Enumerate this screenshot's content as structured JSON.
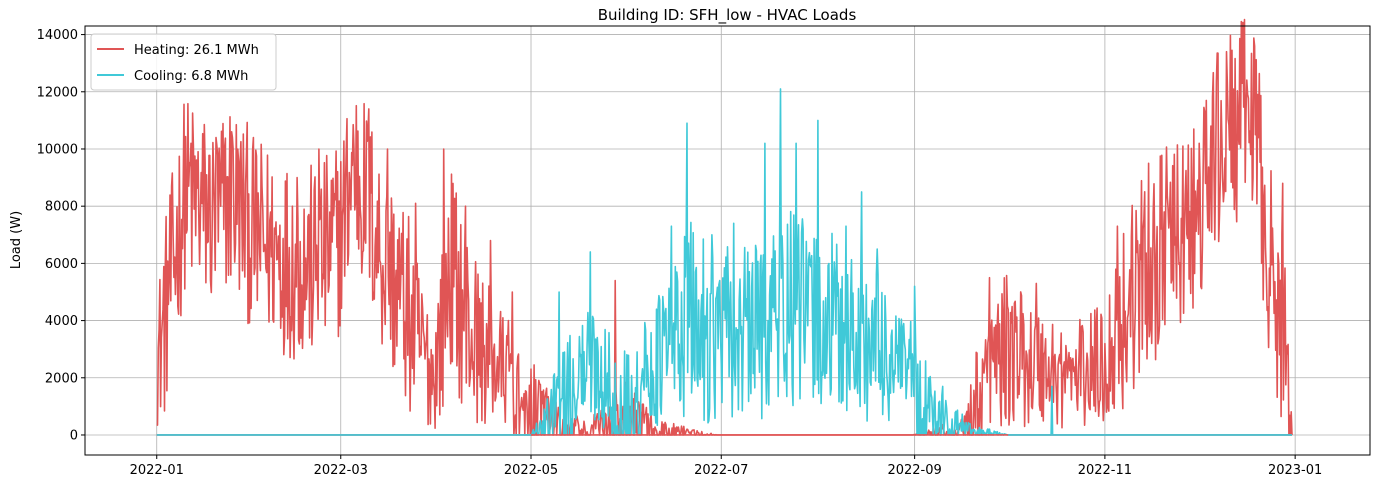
{
  "chart_data": {
    "type": "line",
    "title": "Building ID: SFH_low - HVAC Loads",
    "xlabel": "",
    "ylabel": "Load (W)",
    "xlim": [
      "2021-12-09",
      "2023-01-25"
    ],
    "ylim": [
      -700,
      14300
    ],
    "x_ticks": [
      "2022-01",
      "2022-03",
      "2022-05",
      "2022-07",
      "2022-09",
      "2022-11",
      "2023-01"
    ],
    "x_tick_dates": [
      "2022-01-01",
      "2022-03-01",
      "2022-05-01",
      "2022-07-01",
      "2022-09-01",
      "2022-11-01",
      "2023-01-01"
    ],
    "y_ticks": [
      0,
      2000,
      4000,
      6000,
      8000,
      10000,
      12000,
      14000
    ],
    "y_tick_labels": [
      "0",
      "2000",
      "4000",
      "6000",
      "8000",
      "10000",
      "12000",
      "14000"
    ],
    "grid": true,
    "legend_position": "top-left",
    "series": [
      {
        "name": "Heating: 26.1 MWh",
        "color": "#d62728",
        "dates": [
          "2022-01-01",
          "2022-01-05",
          "2022-01-10",
          "2022-01-15",
          "2022-01-20",
          "2022-01-25",
          "2022-02-01",
          "2022-02-08",
          "2022-02-15",
          "2022-02-22",
          "2022-03-01",
          "2022-03-05",
          "2022-03-10",
          "2022-03-15",
          "2022-03-20",
          "2022-03-25",
          "2022-03-31",
          "2022-04-05",
          "2022-04-10",
          "2022-04-15",
          "2022-04-20",
          "2022-04-25",
          "2022-05-01",
          "2022-05-10",
          "2022-05-20",
          "2022-05-31",
          "2022-06-10",
          "2022-06-30",
          "2022-07-31",
          "2022-08-31",
          "2022-09-15",
          "2022-09-25",
          "2022-10-01",
          "2022-10-10",
          "2022-10-20",
          "2022-11-01",
          "2022-11-10",
          "2022-11-20",
          "2022-11-25",
          "2022-12-01",
          "2022-12-05",
          "2022-12-10",
          "2022-12-15",
          "2022-12-18",
          "2022-12-22",
          "2022-12-26",
          "2022-12-29",
          "2022-12-31"
        ],
        "values": [
          2500,
          5000,
          8500,
          8000,
          7500,
          8500,
          7000,
          6500,
          6000,
          6000,
          7000,
          9500,
          8000,
          6000,
          5000,
          3500,
          2000,
          6000,
          4000,
          3000,
          2500,
          2000,
          1500,
          500,
          300,
          1000,
          300,
          0,
          0,
          0,
          300,
          2500,
          3000,
          2500,
          2000,
          2500,
          5000,
          6500,
          7000,
          7500,
          9500,
          10500,
          11000,
          11500,
          8000,
          4000,
          3500,
          300
        ],
        "peaks": [
          [
            "2022-01-05",
            5500
          ],
          [
            "2022-01-12",
            10200
          ],
          [
            "2022-01-20",
            10400
          ],
          [
            "2022-01-25",
            10600
          ],
          [
            "2022-02-15",
            9000
          ],
          [
            "2022-02-22",
            10000
          ],
          [
            "2022-03-10",
            11400
          ],
          [
            "2022-03-16",
            10000
          ],
          [
            "2022-03-25",
            8100
          ],
          [
            "2022-04-03",
            10000
          ],
          [
            "2022-04-10",
            8000
          ],
          [
            "2022-04-18",
            6800
          ],
          [
            "2022-04-25",
            5000
          ],
          [
            "2022-05-28",
            5400
          ],
          [
            "2022-09-25",
            5500
          ],
          [
            "2022-10-10",
            5300
          ],
          [
            "2022-10-20",
            2000
          ],
          [
            "2022-11-05",
            7300
          ],
          [
            "2022-11-15",
            9500
          ],
          [
            "2022-11-20",
            7800
          ],
          [
            "2022-12-05",
            10800
          ],
          [
            "2022-12-10",
            13400
          ],
          [
            "2022-12-15",
            12300
          ],
          [
            "2022-12-19",
            13600
          ],
          [
            "2022-12-28",
            8800
          ]
        ]
      },
      {
        "name": "Cooling: 6.8 MWh",
        "color": "#17becf",
        "dates": [
          "2022-01-01",
          "2022-05-01",
          "2022-05-10",
          "2022-05-20",
          "2022-06-01",
          "2022-06-10",
          "2022-06-20",
          "2022-07-01",
          "2022-07-10",
          "2022-07-20",
          "2022-08-01",
          "2022-08-10",
          "2022-08-20",
          "2022-09-01",
          "2022-09-10",
          "2022-09-20",
          "2022-10-01",
          "2022-12-31"
        ],
        "values": [
          0,
          0,
          1500,
          2500,
          1500,
          2500,
          4000,
          3500,
          3500,
          4500,
          4000,
          3500,
          3000,
          2000,
          700,
          200,
          0,
          0
        ],
        "peaks": [
          [
            "2022-05-10",
            5000
          ],
          [
            "2022-05-20",
            6400
          ],
          [
            "2022-06-15",
            7300
          ],
          [
            "2022-06-20",
            10900
          ],
          [
            "2022-06-28",
            7000
          ],
          [
            "2022-07-05",
            7400
          ],
          [
            "2022-07-15",
            10200
          ],
          [
            "2022-07-20",
            12100
          ],
          [
            "2022-07-25",
            10200
          ],
          [
            "2022-08-01",
            11000
          ],
          [
            "2022-08-10",
            7300
          ],
          [
            "2022-08-15",
            8500
          ],
          [
            "2022-08-20",
            6500
          ],
          [
            "2022-09-01",
            5200
          ],
          [
            "2022-09-10",
            1700
          ],
          [
            "2022-10-15",
            1700
          ]
        ]
      }
    ]
  }
}
